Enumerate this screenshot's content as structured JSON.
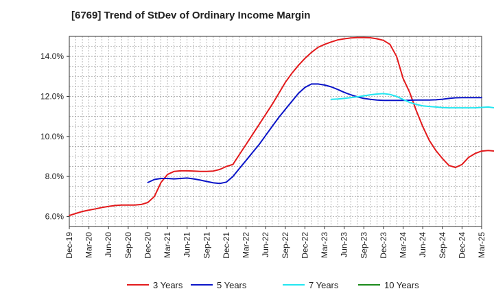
{
  "chart_data": {
    "type": "line",
    "title": "[6769]  Trend of StDev of Ordinary Income Margin",
    "xlabel": "",
    "ylabel": "",
    "x_tick_labels": [
      "Dec-19",
      "Mar-20",
      "Jun-20",
      "Sep-20",
      "Dec-20",
      "Mar-21",
      "Jun-21",
      "Sep-21",
      "Dec-21",
      "Mar-22",
      "Jun-22",
      "Sep-22",
      "Dec-22",
      "Mar-23",
      "Jun-23",
      "Sep-23",
      "Dec-23",
      "Mar-24",
      "Jun-24",
      "Sep-24",
      "Dec-24",
      "Mar-25"
    ],
    "y_tick_labels": [
      "6.0%",
      "8.0%",
      "10.0%",
      "12.0%",
      "14.0%"
    ],
    "ylim": [
      5.5,
      15.0
    ],
    "y_ticks": [
      6,
      8,
      10,
      12,
      14
    ],
    "grid": true,
    "legend_position": "bottom",
    "series": [
      {
        "name": "3 Years",
        "color": "#e31a1c",
        "start_index": 0,
        "values": [
          6.05,
          6.15,
          6.25,
          6.32,
          6.38,
          6.45,
          6.5,
          6.55,
          6.57,
          6.57,
          6.57,
          6.6,
          6.7,
          7.0,
          7.7,
          8.1,
          8.25,
          8.28,
          8.28,
          8.27,
          8.25,
          8.25,
          8.27,
          8.35,
          8.5,
          8.6,
          9.1,
          9.6,
          10.1,
          10.6,
          11.1,
          11.6,
          12.15,
          12.7,
          13.15,
          13.55,
          13.9,
          14.2,
          14.45,
          14.6,
          14.72,
          14.82,
          14.88,
          14.92,
          14.94,
          14.94,
          14.93,
          14.88,
          14.8,
          14.6,
          14.0,
          12.9,
          12.2,
          11.3,
          10.5,
          9.8,
          9.3,
          8.9,
          8.55,
          8.45,
          8.6,
          8.95,
          9.15,
          9.27,
          9.3,
          9.27
        ]
      },
      {
        "name": "5 Years",
        "color": "#0a14c8",
        "start_index": 12,
        "values": [
          7.7,
          7.85,
          7.9,
          7.9,
          7.88,
          7.9,
          7.92,
          7.88,
          7.82,
          7.75,
          7.68,
          7.65,
          7.72,
          8.0,
          8.4,
          8.8,
          9.2,
          9.6,
          10.05,
          10.5,
          10.95,
          11.35,
          11.75,
          12.15,
          12.45,
          12.62,
          12.62,
          12.57,
          12.48,
          12.35,
          12.2,
          12.08,
          11.98,
          11.9,
          11.85,
          11.82,
          11.8,
          11.8,
          11.8,
          11.8,
          11.81,
          11.82,
          11.82,
          11.82,
          11.83,
          11.86,
          11.9,
          11.93,
          11.94,
          11.94,
          11.94,
          11.94
        ]
      },
      {
        "name": "7 Years",
        "color": "#22e6f0",
        "start_index": 40,
        "values": [
          11.85,
          11.87,
          11.9,
          11.94,
          11.98,
          12.03,
          12.08,
          12.12,
          12.14,
          12.1,
          12.0,
          11.85,
          11.7,
          11.6,
          11.53,
          11.5,
          11.47,
          11.44,
          11.43,
          11.43,
          11.43,
          11.43,
          11.43,
          11.45,
          11.47,
          11.43,
          11.33,
          11.22
        ]
      },
      {
        "name": "10 Years",
        "color": "#1a8a1a",
        "start_index": 0,
        "values": []
      }
    ]
  }
}
